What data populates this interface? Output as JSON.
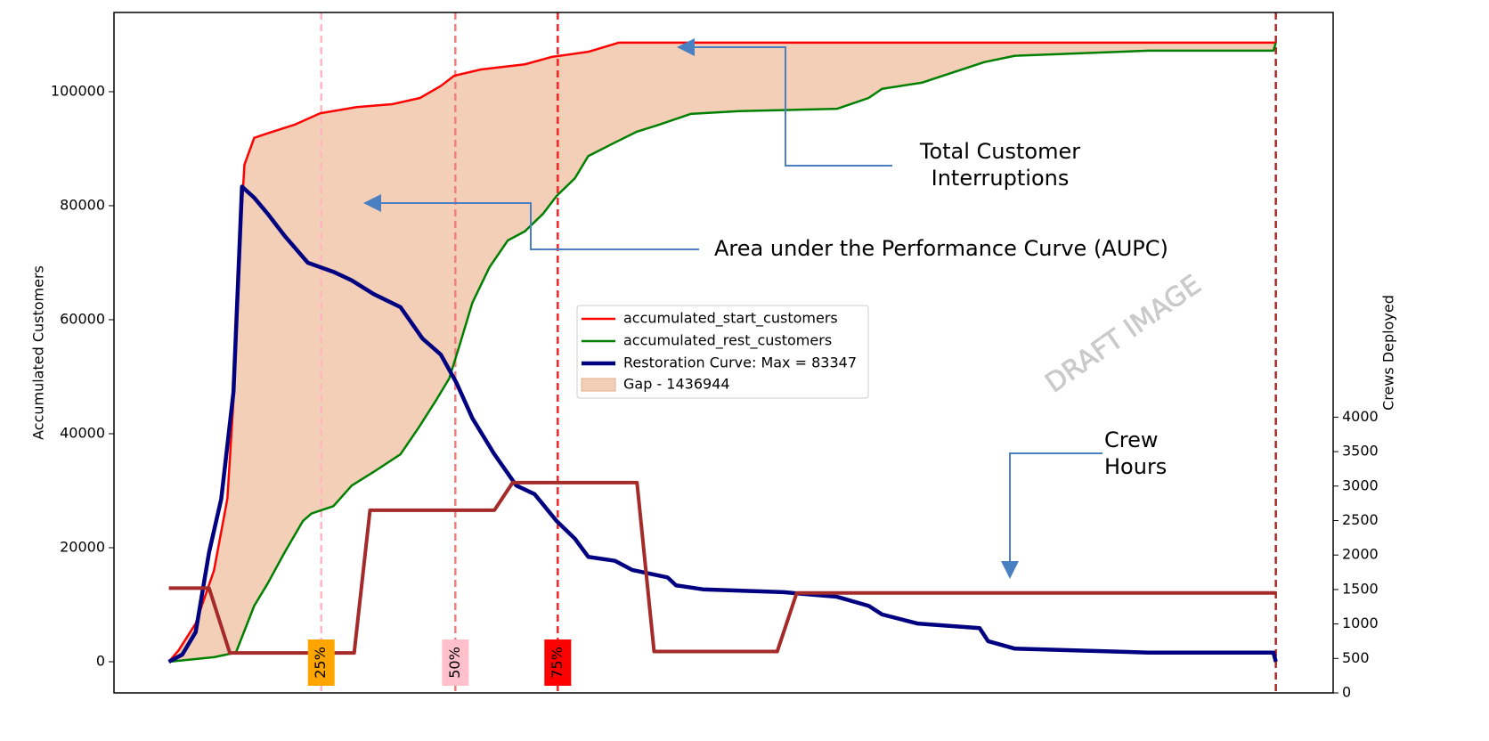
{
  "chart_data": {
    "type": "line",
    "ylabel": "Accumulated Customers",
    "y2label": "Crews Deployed",
    "xlim": [
      0,
      100
    ],
    "ylim": [
      -5470,
      113900
    ],
    "yticks": [
      0,
      20000,
      40000,
      60000,
      80000,
      100000
    ],
    "y2lim": [
      0,
      9870
    ],
    "y2ticks": [
      0,
      500,
      1000,
      1500,
      2000,
      2500,
      3000,
      3500,
      4000
    ],
    "series": [
      {
        "name": "accumulated_start_customers",
        "color": "#ff0000",
        "x": [
          4.5,
          5.3,
          6.7,
          8.2,
          9.3,
          9.8,
          10.2,
          10.7,
          11.5,
          12.6,
          14.8,
          16.9,
          19.9,
          22.8,
          25.1,
          26.8,
          27.9,
          30.1,
          33.7,
          35.9,
          38.9,
          41.4,
          95.3
        ],
        "values": [
          0,
          2000,
          6700,
          16000,
          28600,
          45800,
          69200,
          87200,
          91900,
          92700,
          94200,
          96200,
          97300,
          97800,
          98900,
          101000,
          102800,
          103900,
          104800,
          106100,
          107000,
          108600,
          108600
        ]
      },
      {
        "name": "accumulated_rest_customers",
        "color": "#008000",
        "x": [
          4.5,
          8.2,
          10.0,
          11.5,
          12.6,
          14.0,
          15.5,
          16.2,
          18.0,
          19.5,
          21.3,
          23.5,
          25.0,
          26.4,
          27.5,
          28.3,
          29.4,
          30.8,
          32.3,
          33.7,
          35.2,
          36.3,
          37.8,
          38.9,
          41.1,
          42.9,
          44.7,
          47.3,
          51.3,
          59.3,
          61.9,
          63.0,
          66.3,
          71.4,
          73.9,
          84.9,
          95.1,
          95.3
        ],
        "values": [
          0,
          800,
          1600,
          9800,
          13700,
          19200,
          24700,
          26000,
          27300,
          30900,
          33300,
          36400,
          41100,
          45800,
          49700,
          55200,
          63000,
          69200,
          73900,
          75500,
          78600,
          81700,
          84800,
          88700,
          91100,
          93000,
          94200,
          96100,
          96600,
          97000,
          98900,
          100500,
          101600,
          105200,
          106300,
          107200,
          107200,
          108600
        ]
      },
      {
        "name": "Restoration Curve: Max = 83347",
        "color": "#000080",
        "x": [
          4.5,
          5.6,
          6.7,
          7.8,
          8.8,
          9.8,
          10.5,
          11.5,
          12.6,
          14.0,
          15.9,
          18.0,
          19.5,
          21.3,
          23.5,
          25.3,
          26.8,
          28.1,
          29.4,
          31.2,
          33.0,
          34.5,
          36.3,
          37.8,
          38.9,
          41.1,
          42.5,
          45.4,
          46.1,
          48.3,
          54.9,
          59.3,
          61.9,
          63.0,
          65.9,
          71.0,
          71.7,
          73.9,
          84.9,
          95.1,
          95.3
        ],
        "values": [
          0,
          1250,
          5200,
          19200,
          28600,
          47300,
          83347,
          81400,
          78600,
          74700,
          70000,
          68400,
          66900,
          64500,
          62200,
          56700,
          53900,
          48900,
          42700,
          36400,
          30900,
          29400,
          24700,
          21600,
          18400,
          17700,
          16100,
          14800,
          13400,
          12700,
          12200,
          11400,
          9800,
          8300,
          6700,
          5900,
          3600,
          2300,
          1600,
          1600,
          0
        ]
      },
      {
        "name": "Crew Hours",
        "color": "#a52a2a",
        "axis": "y2",
        "x": [
          4.5,
          7.8,
          9.5,
          19.7,
          21.0,
          31.2,
          32.7,
          42.9,
          44.3,
          54.4,
          56.0,
          95.3
        ],
        "values": [
          1520,
          1520,
          580,
          580,
          2650,
          2650,
          3050,
          3050,
          600,
          600,
          1450,
          1450
        ]
      }
    ],
    "fill_between": {
      "name": "Gap - 1436944",
      "color": "#f4cfb8"
    },
    "markers": [
      {
        "x": 17.0,
        "label": "25%",
        "line_color": "#ffb6c1",
        "color": "#ffa500"
      },
      {
        "x": 28.0,
        "label": "50%",
        "line_color": "#f08080",
        "color": "#ffc0cb"
      },
      {
        "x": 36.4,
        "label": "75%",
        "line_color": "#ff2020",
        "color": "#ff0000"
      },
      {
        "x": 95.3,
        "line_color": "#a52a2a"
      }
    ],
    "annotations": [
      {
        "text": [
          "Total Customer",
          "Interruptions"
        ]
      },
      {
        "text": [
          "Area under the Performance Curve (AUPC)"
        ]
      },
      {
        "text": [
          "Crew",
          "Hours"
        ]
      }
    ],
    "watermark": "DRAFT IMAGE"
  }
}
